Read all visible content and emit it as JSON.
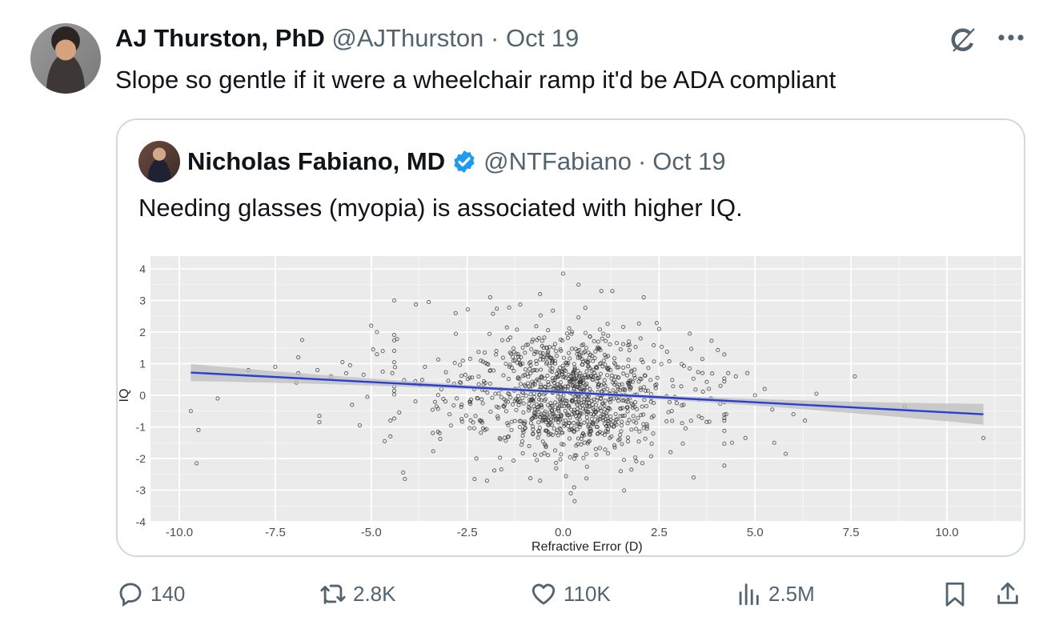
{
  "tweet": {
    "author_name": "AJ Thurston, PhD",
    "author_handle": "@AJThurston",
    "separator": "·",
    "date": "Oct 19",
    "text": "Slope so gentle if it were a wheelchair ramp it'd be ADA compliant",
    "icons": {
      "grok": "grok-icon",
      "more": "more-icon"
    }
  },
  "quoted_tweet": {
    "author_name": "Nicholas Fabiano, MD",
    "verified": true,
    "verified_color": "#1d9bf0",
    "author_handle": "@NTFabiano",
    "separator": "·",
    "date": "Oct 19",
    "text": "Needing glasses (myopia) is associated with higher IQ."
  },
  "actions": {
    "replies": "140",
    "reposts": "2.8K",
    "likes": "110K",
    "views": "2.5M",
    "bookmark": "bookmark-icon",
    "share": "share-icon"
  },
  "colors": {
    "text_primary": "#0f1419",
    "text_secondary": "#536471",
    "border": "#cfd9de",
    "plot_panel": "#ebebeb",
    "grid": "#ffffff",
    "fit_line": "#2a3fd1",
    "ci_band": "#bdbdbd",
    "points": "#333333"
  },
  "chart_data": {
    "type": "scatter",
    "title": "",
    "xlabel": "Refractive Error (D)",
    "ylabel": "IQ",
    "xlim": [
      -10.6,
      11.8
    ],
    "ylim": [
      -4.1,
      4.4
    ],
    "x_ticks": [
      -10.0,
      -7.5,
      -5.0,
      -2.5,
      0.0,
      2.5,
      5.0,
      7.5,
      10.0
    ],
    "x_tick_labels": [
      "-10.0",
      "-7.5",
      "-5.0",
      "-2.5",
      "0.0",
      "2.5",
      "5.0",
      "7.5",
      "10.0"
    ],
    "y_ticks": [
      -4,
      -3,
      -2,
      -1,
      0,
      1,
      2,
      3,
      4
    ],
    "y_tick_labels": [
      "-4",
      "-3",
      "-2",
      "-1",
      "0",
      "1",
      "2",
      "3",
      "4"
    ],
    "grid": true,
    "legend": null,
    "regression": {
      "x_start": -9.7,
      "y_start": 0.72,
      "x_end": 10.95,
      "y_end": -0.6,
      "ci_half_width_start": 0.27,
      "ci_half_width_mid": 0.05,
      "ci_half_width_end": 0.33
    },
    "cluster": {
      "n": 1100,
      "center_x": 0.2,
      "sd_x": 1.45,
      "center_y": 0.0,
      "sd_y": 0.95,
      "seed": 7
    },
    "outliers": [
      [
        -9.7,
        -0.5
      ],
      [
        -9.5,
        -1.1
      ],
      [
        -9.55,
        -2.15
      ],
      [
        -9.0,
        -0.1
      ],
      [
        -8.2,
        0.8
      ],
      [
        -7.5,
        0.9
      ],
      [
        -6.9,
        1.2
      ],
      [
        -6.9,
        0.7
      ],
      [
        -6.8,
        1.75
      ],
      [
        -6.95,
        0.4
      ],
      [
        -6.4,
        0.8
      ],
      [
        -6.35,
        -0.65
      ],
      [
        -6.35,
        -0.85
      ],
      [
        -6.05,
        0.6
      ],
      [
        -5.75,
        1.05
      ],
      [
        -5.65,
        0.7
      ],
      [
        -5.55,
        0.95
      ],
      [
        -5.5,
        -0.3
      ],
      [
        -5.3,
        -0.95
      ],
      [
        -5.2,
        0.65
      ],
      [
        -5.0,
        2.2
      ],
      [
        -5.1,
        -0.05
      ],
      [
        -4.85,
        2.0
      ],
      [
        -4.85,
        1.3
      ],
      [
        -4.95,
        1.45
      ],
      [
        -4.7,
        1.4
      ],
      [
        -4.7,
        0.75
      ],
      [
        -4.5,
        -0.8
      ],
      [
        -4.65,
        -1.45
      ],
      [
        -4.5,
        -1.3
      ],
      [
        -4.4,
        3.0
      ],
      [
        -4.45,
        0.7
      ],
      [
        -3.5,
        2.95
      ],
      [
        -3.6,
        0.9
      ],
      [
        -2.8,
        2.6
      ],
      [
        -1.9,
        3.1
      ],
      [
        2.1,
        3.1
      ],
      [
        2.5,
        2.1
      ],
      [
        3.3,
        1.95
      ],
      [
        3.4,
        -2.6
      ],
      [
        2.8,
        -1.8
      ],
      [
        1.5,
        -2.4
      ],
      [
        4.5,
        0.6
      ],
      [
        4.3,
        0.7
      ],
      [
        4.8,
        0.7
      ],
      [
        4.1,
        0.3
      ],
      [
        4.25,
        -0.6
      ],
      [
        4.4,
        -1.5
      ],
      [
        4.75,
        -1.35
      ],
      [
        5.0,
        0.0
      ],
      [
        5.25,
        0.2
      ],
      [
        5.45,
        -0.45
      ],
      [
        5.5,
        -1.5
      ],
      [
        5.8,
        -1.85
      ],
      [
        6.0,
        -0.6
      ],
      [
        6.3,
        -0.8
      ],
      [
        6.6,
        0.05
      ],
      [
        7.6,
        0.6
      ],
      [
        8.9,
        -0.35
      ],
      [
        10.95,
        -1.35
      ],
      [
        0.0,
        3.85
      ],
      [
        0.4,
        3.5
      ],
      [
        -0.6,
        3.2
      ],
      [
        0.3,
        -3.35
      ],
      [
        0.2,
        -3.1
      ],
      [
        -0.6,
        -2.7
      ]
    ]
  }
}
